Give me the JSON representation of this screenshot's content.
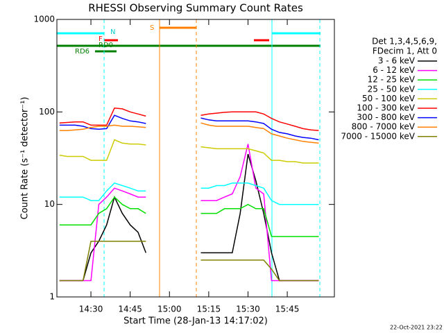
{
  "chart_data": {
    "type": "line",
    "title": "RHESSI Observing Summary Count Rates",
    "xlabel": "Start Time (28-Jan-13 14:17:02)",
    "ylabel": "Count Rate (s⁻¹ detector⁻¹)",
    "legend_title": [
      "Det 1,3,4,5,6,9,",
      "FDecim 1, Att 0"
    ],
    "footer": "22-Oct-2021 23:22",
    "annotations": [
      "N",
      "F",
      "RD0",
      "RD6",
      "S"
    ],
    "log_y": true,
    "legend": "right",
    "xlim": [
      857,
      963
    ],
    "xticks": [
      {
        "value": 870,
        "label": "14:30"
      },
      {
        "value": 885,
        "label": "14:45"
      },
      {
        "value": 900,
        "label": "15:00"
      },
      {
        "value": 915,
        "label": "15:15"
      },
      {
        "value": 930,
        "label": "15:30"
      },
      {
        "value": 945,
        "label": "15:45"
      }
    ],
    "ylim": [
      1,
      1000
    ],
    "yticks": [
      1,
      10,
      100,
      1000
    ],
    "x": [
      858,
      861,
      864,
      867,
      870,
      873,
      876,
      879,
      882,
      885,
      888,
      891,
      894,
      897,
      900,
      903,
      906,
      909,
      912,
      915,
      918,
      921,
      924,
      927,
      930,
      933,
      936,
      939,
      942,
      945,
      948,
      951,
      954,
      957
    ],
    "series": [
      {
        "name": "3 - 6 keV",
        "color": "#000000",
        "values": [
          1.5,
          1.5,
          1.5,
          1.5,
          3,
          4,
          6,
          12,
          8,
          6,
          5,
          3,
          null,
          null,
          null,
          null,
          null,
          null,
          3,
          3,
          3,
          3,
          3,
          8,
          35,
          18,
          8,
          3,
          1.5,
          1.5,
          1.5,
          1.5,
          1.5,
          1.5
        ]
      },
      {
        "name": "6 - 12 keV",
        "color": "#ff00ff",
        "values": [
          1.5,
          1.5,
          1.5,
          1.5,
          1.5,
          10,
          12,
          15,
          14,
          13,
          12,
          12,
          null,
          null,
          null,
          null,
          null,
          null,
          11,
          11,
          11,
          12,
          13,
          20,
          45,
          15,
          13,
          1.5,
          1.5,
          1.5,
          1.5,
          1.5,
          1.5,
          1.5
        ]
      },
      {
        "name": "12 - 25 keV",
        "color": "#00e000",
        "values": [
          6,
          6,
          6,
          6,
          6,
          8,
          9,
          12,
          10,
          9,
          9,
          8,
          null,
          null,
          null,
          null,
          null,
          null,
          8,
          8,
          8,
          9,
          9,
          9,
          10,
          9,
          9,
          4.5,
          4.5,
          4.5,
          4.5,
          4.5,
          4.5,
          4.5
        ]
      },
      {
        "name": "25 - 50 keV",
        "color": "#00ffff",
        "values": [
          12,
          12,
          12,
          12,
          11,
          11,
          14,
          17,
          16,
          15,
          14,
          14,
          null,
          null,
          null,
          null,
          null,
          null,
          15,
          15,
          16,
          16,
          17,
          17,
          17,
          16,
          15,
          11,
          10,
          10,
          10,
          10,
          10,
          10
        ]
      },
      {
        "name": "50 - 100 keV",
        "color": "#cccc00",
        "values": [
          34,
          33,
          33,
          33,
          30,
          30,
          30,
          50,
          46,
          45,
          45,
          44,
          null,
          null,
          null,
          null,
          null,
          null,
          42,
          41,
          40,
          40,
          40,
          40,
          40,
          38,
          36,
          30,
          30,
          29,
          29,
          28,
          28,
          28
        ]
      },
      {
        "name": "100 - 300 keV",
        "color": "#ff0000",
        "values": [
          76,
          77,
          78,
          78,
          72,
          72,
          72,
          110,
          108,
          100,
          95,
          90,
          null,
          null,
          null,
          null,
          null,
          null,
          92,
          95,
          97,
          99,
          100,
          100,
          100,
          100,
          95,
          85,
          78,
          74,
          70,
          66,
          64,
          63
        ]
      },
      {
        "name": "300 - 800 keV",
        "color": "#0000ff",
        "values": [
          72,
          72,
          72,
          70,
          66,
          65,
          66,
          92,
          85,
          80,
          78,
          75,
          null,
          null,
          null,
          null,
          null,
          null,
          86,
          82,
          80,
          80,
          80,
          80,
          80,
          78,
          75,
          65,
          60,
          58,
          55,
          53,
          52,
          50
        ]
      },
      {
        "name": "800 - 7000 keV",
        "color": "#ff8000",
        "values": [
          63,
          63,
          64,
          65,
          68,
          70,
          70,
          72,
          70,
          70,
          69,
          68,
          null,
          null,
          null,
          null,
          null,
          null,
          76,
          72,
          70,
          70,
          70,
          70,
          70,
          68,
          66,
          58,
          55,
          52,
          50,
          48,
          47,
          46
        ]
      },
      {
        "name": "7000 - 15000 keV",
        "color": "#808000",
        "values": [
          1.5,
          1.5,
          1.5,
          1.5,
          4,
          4,
          4,
          4,
          4,
          4,
          4,
          4,
          null,
          null,
          null,
          null,
          null,
          null,
          2.5,
          2.5,
          2.5,
          2.5,
          2.5,
          2.5,
          2.5,
          2.5,
          2.5,
          2,
          1.5,
          1.5,
          1.5,
          1.5,
          1.5,
          1.5
        ]
      }
    ]
  }
}
